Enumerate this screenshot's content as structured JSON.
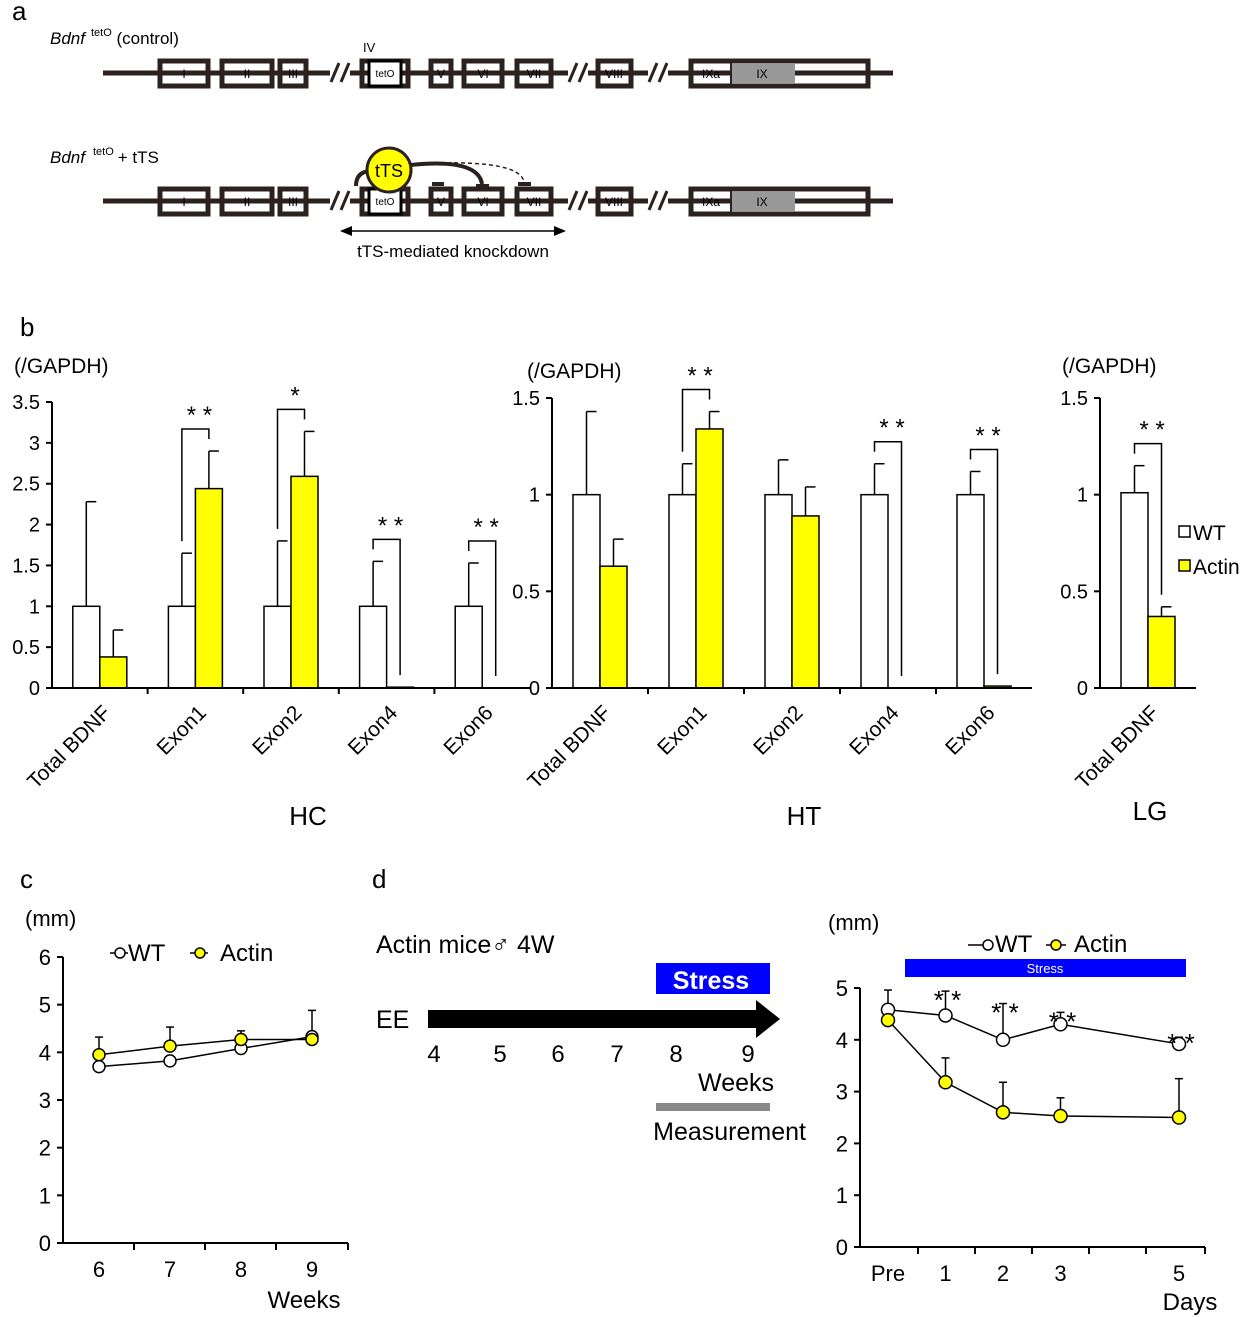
{
  "panel_labels": {
    "a": "a",
    "b": "b",
    "c": "c",
    "d": "d"
  },
  "panel_a": {
    "gene_italic": "Bdnf",
    "gene_sup": "tetO",
    "control_suffix": " (control)",
    "tts_suffix": "+ tTS",
    "exon_iv_label": "IV",
    "tts_label": "tTS",
    "knockdown_label": "tTS-mediated knockdown",
    "exons": [
      "I",
      "II",
      "III",
      "tetO",
      "V",
      "VI",
      "VII",
      "VIII",
      "IXa",
      "IX"
    ],
    "colors": {
      "line": "#2b211e",
      "tts": "#ffff00",
      "ix_fill": "#999999"
    }
  },
  "colors": {
    "wt": "#ffffff",
    "actin": "#ffff00",
    "stress_bar": "#0000ff",
    "measure_bar": "#888888"
  },
  "chart_data": [
    {
      "id": "HC",
      "type": "bar",
      "title": "HC",
      "ylabel": "(/GAPDH)",
      "ylim": [
        0,
        3.5
      ],
      "yticks": [
        "0",
        "0.5",
        "1",
        "1.5",
        "2",
        "2.5",
        "3",
        "3.5"
      ],
      "categories": [
        "Total BDNF",
        "Exon1",
        "Exon2",
        "Exon4",
        "Exon6"
      ],
      "series": [
        {
          "name": "WT",
          "values": [
            1,
            1,
            1,
            1,
            1
          ],
          "errors": [
            1.28,
            0.65,
            0.8,
            0.55,
            0.53
          ]
        },
        {
          "name": "Actin",
          "values": [
            0.38,
            2.44,
            2.59,
            0.01,
            0.0
          ],
          "errors": [
            0.33,
            0.46,
            0.55,
            0,
            0
          ]
        }
      ],
      "significance": [
        {
          "category": "Exon1",
          "label": "* *"
        },
        {
          "category": "Exon2",
          "label": "*"
        },
        {
          "category": "Exon4",
          "label": "* *"
        },
        {
          "category": "Exon6",
          "label": "* *"
        }
      ]
    },
    {
      "id": "HT",
      "type": "bar",
      "title": "HT",
      "ylabel": "(/GAPDH)",
      "ylim": [
        0,
        1.5
      ],
      "yticks": [
        "0",
        "0.5",
        "1",
        "1.5"
      ],
      "categories": [
        "Total BDNF",
        "Exon1",
        "Exon2",
        "Exon4",
        "Exon6"
      ],
      "series": [
        {
          "name": "WT",
          "values": [
            1,
            1,
            1,
            1,
            1
          ],
          "errors": [
            0.43,
            0.16,
            0.18,
            0.16,
            0.12
          ]
        },
        {
          "name": "Actin",
          "values": [
            0.63,
            1.34,
            0.89,
            0.0,
            0.01
          ],
          "errors": [
            0.14,
            0.09,
            0.15,
            0,
            0
          ]
        }
      ],
      "significance": [
        {
          "category": "Exon1",
          "label": "* *"
        },
        {
          "category": "Exon4",
          "label": "* *"
        },
        {
          "category": "Exon6",
          "label": "* *"
        }
      ]
    },
    {
      "id": "LG",
      "type": "bar",
      "title": "LG",
      "ylabel": "(/GAPDH)",
      "ylim": [
        0,
        1.5
      ],
      "yticks": [
        "0",
        "0.5",
        "1",
        "1.5"
      ],
      "categories": [
        "Total BDNF"
      ],
      "series": [
        {
          "name": "WT",
          "values": [
            1.01
          ],
          "errors": [
            0.14
          ]
        },
        {
          "name": "Actin",
          "values": [
            0.37
          ],
          "errors": [
            0.05
          ]
        }
      ],
      "significance": [
        {
          "category": "Total BDNF",
          "label": "* *"
        }
      ],
      "legend": [
        "WT",
        "Actin"
      ]
    },
    {
      "id": "c",
      "type": "line",
      "ylabel": "(mm)",
      "xlabel": "Weeks",
      "x": [
        6,
        7,
        8,
        9
      ],
      "xticks": [
        "6",
        "7",
        "8",
        "9"
      ],
      "ylim": [
        0,
        6
      ],
      "yticks": [
        "0",
        "1",
        "2",
        "3",
        "4",
        "5",
        "6"
      ],
      "series": [
        {
          "name": "WT",
          "values": [
            3.7,
            3.82,
            4.08,
            4.33
          ],
          "errors": [
            0,
            0,
            0,
            0.55
          ]
        },
        {
          "name": "Actin",
          "values": [
            3.95,
            4.13,
            4.27,
            4.27
          ],
          "errors": [
            0.37,
            0.4,
            0.18,
            0
          ]
        }
      ],
      "legend": [
        "WT",
        "Actin"
      ]
    },
    {
      "id": "d_protocol",
      "type": "diagram",
      "header": "Actin mice♂  4W",
      "stress_label": "Stress",
      "ee_label": "EE",
      "weeks": [
        "4",
        "5",
        "6",
        "7",
        "8",
        "9"
      ],
      "weeks_label": "Weeks",
      "measurement_label": "Measurement"
    },
    {
      "id": "d",
      "type": "line",
      "ylabel": "(mm)",
      "xlabel": "Days",
      "stress_label": "Stress",
      "x": [
        0,
        1,
        2,
        3,
        5
      ],
      "xticks": [
        "Pre",
        "1",
        "2",
        "3",
        "5"
      ],
      "ylim": [
        0,
        5
      ],
      "yticks": [
        "0",
        "1",
        "2",
        "3",
        "4",
        "5"
      ],
      "series": [
        {
          "name": "WT",
          "values": [
            4.58,
            4.47,
            4.0,
            4.3,
            3.92
          ],
          "errors": [
            0.38,
            0.47,
            0.7,
            0.23,
            0.13
          ]
        },
        {
          "name": "Actin",
          "values": [
            4.38,
            3.18,
            2.6,
            2.53,
            2.5
          ],
          "errors": [
            0,
            0.47,
            0.58,
            0.35,
            0.75
          ]
        }
      ],
      "significance": [
        {
          "x": 1,
          "label": "* *"
        },
        {
          "x": 2,
          "label": "* *"
        },
        {
          "x": 3,
          "label": "* *"
        },
        {
          "x": 5,
          "label": "* *"
        }
      ],
      "legend": [
        "WT",
        "Actin"
      ]
    }
  ]
}
